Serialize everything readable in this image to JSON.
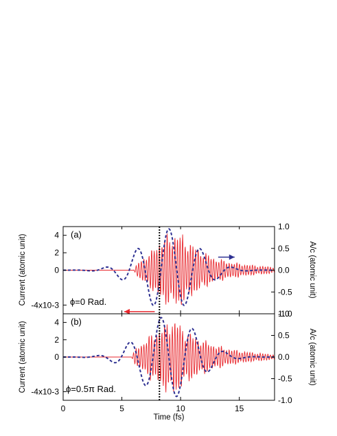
{
  "chart_data": [
    {
      "type": "line",
      "panel_tag": "(a)",
      "phase_label": "ϕ=0 Rad.",
      "xlabel": "Time (fs)",
      "ylabel_left": "Current (atomic unit)",
      "ylabel_right": "A/c (atomic unit)",
      "xlim": [
        0,
        18
      ],
      "xticks": [
        0,
        5,
        10,
        15
      ],
      "ylim_left": [
        -5,
        5
      ],
      "yticks_left": [
        "-4x10-3",
        "0",
        "2",
        "4"
      ],
      "yticks_left_values": [
        -4,
        0,
        2,
        4
      ],
      "ylim_right": [
        -1.0,
        1.0
      ],
      "yticks_right": [
        "-1.0",
        "-0.5",
        "0.0",
        "0.5",
        "1.0"
      ],
      "yticks_right_values": [
        -1.0,
        -0.5,
        0.0,
        0.5,
        1.0
      ],
      "vertical_marker_x": 8.2,
      "axis_arrows": [
        {
          "axis": "right",
          "from": 13.2,
          "to": 14.6,
          "y": 0.3,
          "color": "#2e3192"
        },
        {
          "axis": "right",
          "from": 7.8,
          "to": 5.2,
          "y": -0.95,
          "color": "#e8262c"
        }
      ],
      "series": [
        {
          "axis": "left",
          "color": "#e8262c",
          "style": "solid",
          "kind": "current",
          "amplitude_samples": {
            "t": [
              6.0,
              6.5,
              7.0,
              7.5,
              8.0,
              8.5,
              9.0,
              9.5,
              10.0,
              10.5,
              11.0,
              11.5,
              12.0,
              12.5,
              13.0,
              14.0,
              15.0,
              16.0,
              17.0,
              18.0
            ],
            "a": [
              0.0,
              1.2,
              1.8,
              2.3,
              3.5,
              4.0,
              4.4,
              4.7,
              4.6,
              3.9,
              3.3,
              2.7,
              2.3,
              1.8,
              1.5,
              1.1,
              0.85,
              0.65,
              0.5,
              0.4
            ]
          },
          "carrier_period_fs": 0.22
        },
        {
          "axis": "right",
          "color": "#2e3192",
          "style": "dashed",
          "kind": "vector potential",
          "envelope_peak_t": 9.0,
          "envelope_width_fs": 3.3,
          "amplitude": 0.95,
          "period_fs": 2.7,
          "phase_rad": 0.0
        }
      ]
    },
    {
      "type": "line",
      "panel_tag": "(b)",
      "phase_label": "ϕ=0.5π Rad.",
      "xlabel": "Time (fs)",
      "ylabel_left": "Current (atomic unit)",
      "ylabel_right": "A/c (atomic unit)",
      "xlim": [
        0,
        18
      ],
      "xticks": [
        0,
        5,
        10,
        15
      ],
      "xtick_labels": [
        "0",
        "5",
        "10",
        "15"
      ],
      "ylim_left": [
        -5,
        5
      ],
      "yticks_left": [
        "-4x10-3",
        "0",
        "2",
        "4"
      ],
      "yticks_left_values": [
        -4,
        0,
        2,
        4
      ],
      "ylim_right": [
        -1.0,
        1.0
      ],
      "yticks_right": [
        "-1.0",
        "-0.5",
        "0.0",
        "0.5",
        "1.0"
      ],
      "yticks_right_values": [
        -1.0,
        -0.5,
        0.0,
        0.5,
        1.0
      ],
      "vertical_marker_x": 8.2,
      "series": [
        {
          "axis": "left",
          "color": "#e8262c",
          "style": "solid",
          "kind": "current",
          "amplitude_samples": {
            "t": [
              5.8,
              6.3,
              6.8,
              7.3,
              7.8,
              8.3,
              8.8,
              9.3,
              9.8,
              10.3,
              10.8,
              11.3,
              11.8,
              12.5,
              13.0,
              14.0,
              15.0,
              16.0,
              17.0,
              18.0
            ],
            "a": [
              0.0,
              1.3,
              1.9,
              2.6,
              3.2,
              3.7,
              4.4,
              4.8,
              4.5,
              3.5,
              3.0,
              2.6,
              2.2,
              1.8,
              1.5,
              1.1,
              0.8,
              0.6,
              0.45,
              0.35
            ]
          },
          "carrier_period_fs": 0.22
        },
        {
          "axis": "right",
          "color": "#2e3192",
          "style": "dashed",
          "kind": "vector potential",
          "envelope_peak_t": 9.0,
          "envelope_width_fs": 3.3,
          "amplitude": 0.95,
          "period_fs": 2.7,
          "phase_rad": 1.5708
        }
      ]
    }
  ]
}
